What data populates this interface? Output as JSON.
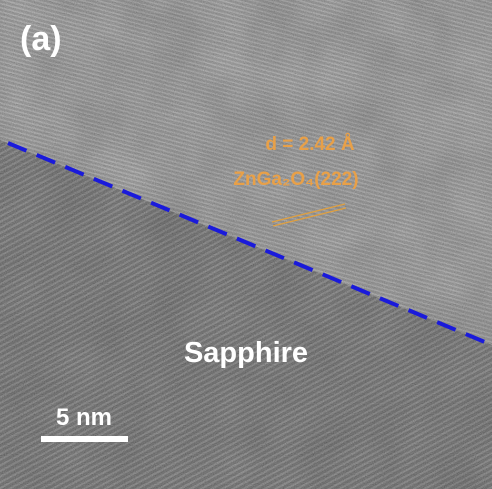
{
  "panel_label": "(a)",
  "annotations": {
    "d_spacing": "d = 2.42 Å",
    "plane": "ZnGa₂O₄(222)",
    "substrate": "Sapphire"
  },
  "scale_bar": {
    "label": "5 nm"
  }
}
